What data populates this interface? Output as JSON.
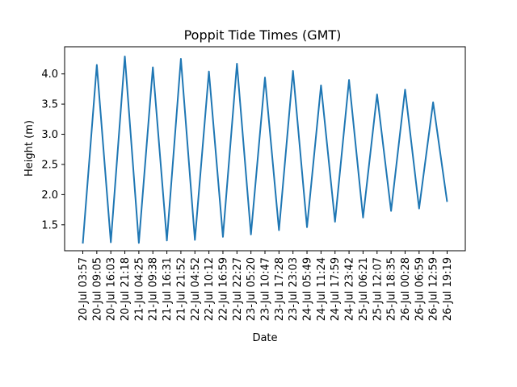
{
  "chart_data": {
    "type": "line",
    "title": "Poppit Tide Times (GMT)",
    "xlabel": "Date",
    "ylabel": "Height (m)",
    "ylim": [
      1.07,
      4.45
    ],
    "yticks": [
      "1.5",
      "2.0",
      "2.5",
      "3.0",
      "3.5",
      "4.0"
    ],
    "grid": false,
    "legend": "none",
    "line_color": "#1f77b4",
    "series": [
      {
        "x": [
          "20-Jul 03:57",
          "20-Jul 09:05",
          "20-Jul 16:03",
          "20-Jul 21:18",
          "21-Jul 04:25",
          "21-Jul 09:38",
          "21-Jul 16:31",
          "21-Jul 21:52",
          "22-Jul 04:52",
          "22-Jul 10:12",
          "22-Jul 16:59",
          "22-Jul 22:27",
          "23-Jul 05:20",
          "23-Jul 10:47",
          "23-Jul 17:28",
          "23-Jul 23:03",
          "24-Jul 05:49",
          "24-Jul 11:24",
          "24-Jul 17:59",
          "24-Jul 23:42",
          "25-Jul 06:21",
          "25-Jul 12:07",
          "25-Jul 18:35",
          "26-Jul 00:28",
          "26-Jul 06:59",
          "26-Jul 12:59",
          "26-Jul 19:19"
        ],
        "values": [
          1.19,
          4.15,
          1.21,
          4.29,
          1.2,
          4.11,
          1.24,
          4.25,
          1.25,
          4.04,
          1.3,
          4.17,
          1.34,
          3.94,
          1.41,
          4.05,
          1.46,
          3.81,
          1.55,
          3.9,
          1.62,
          3.66,
          1.73,
          3.74,
          1.77,
          3.53,
          1.88
        ]
      }
    ]
  }
}
